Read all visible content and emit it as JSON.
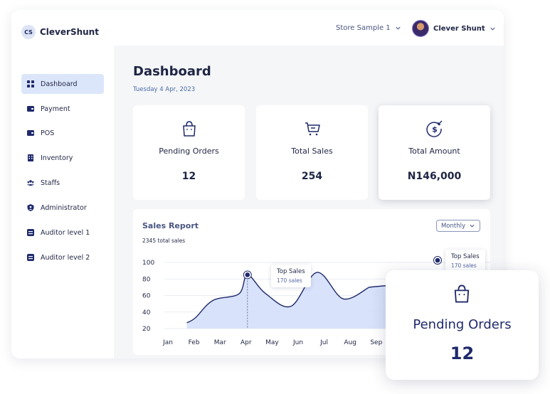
{
  "brand": {
    "badge": "CS",
    "name": "CleverShunt"
  },
  "header": {
    "store": "Store Sample 1",
    "user_name": "Clever Shunt"
  },
  "sidebar": {
    "items": [
      {
        "label": "Dashboard",
        "icon": "grid-icon",
        "active": true
      },
      {
        "label": "Payment",
        "icon": "wallet-icon"
      },
      {
        "label": "POS",
        "icon": "wallet-icon"
      },
      {
        "label": "Inventory",
        "icon": "building-icon"
      },
      {
        "label": "Staffs",
        "icon": "users-icon"
      },
      {
        "label": "Administrator",
        "icon": "shield-user-icon"
      },
      {
        "label": "Auditor level 1",
        "icon": "list-icon"
      },
      {
        "label": "Auditor level 2",
        "icon": "list-icon"
      }
    ]
  },
  "page": {
    "title": "Dashboard",
    "date": "Tuesday 4 Apr, 2023"
  },
  "cards": [
    {
      "label": "Pending Orders",
      "value": "12",
      "icon": "shopping-bag-icon"
    },
    {
      "label": "Total Sales",
      "value": "254",
      "icon": "cart-icon"
    },
    {
      "label": "Total Amount",
      "value": "N146,000",
      "icon": "dollar-coin-icon"
    }
  ],
  "sales_report": {
    "title": "Sales Report",
    "subtitle": "2345 total sales",
    "period": "Monthly",
    "tooltips": [
      {
        "title": "Top Sales",
        "value": "170 sales"
      },
      {
        "title": "Top Sales",
        "value": "170 sales"
      }
    ]
  },
  "chart_data": {
    "type": "area",
    "categories": [
      "Jan",
      "Feb",
      "Mar",
      "Apr",
      "May",
      "Jun",
      "Jul",
      "Aug",
      "Sep"
    ],
    "yticks": [
      100,
      80,
      60,
      40,
      20
    ],
    "ylim": [
      20,
      100
    ],
    "points": [
      {
        "x": "Feb",
        "y": 27
      },
      {
        "x": "Feb",
        "y": 33
      },
      {
        "x": "Mar",
        "y": 54
      },
      {
        "x": "Apr",
        "y": 62
      },
      {
        "x": "Apr",
        "y": 85
      },
      {
        "x": "May",
        "y": 63
      },
      {
        "x": "Jun",
        "y": 47
      },
      {
        "x": "Jul",
        "y": 88
      },
      {
        "x": "Aug",
        "y": 56
      },
      {
        "x": "Sep",
        "y": 70
      }
    ],
    "highlight": {
      "x": "Apr",
      "y": 85
    },
    "grid": true,
    "fill_color": "#d4dffa",
    "line_color": "#1f2a6b"
  },
  "floating_card": {
    "label": "Pending Orders",
    "value": "12",
    "icon": "shopping-bag-icon"
  }
}
